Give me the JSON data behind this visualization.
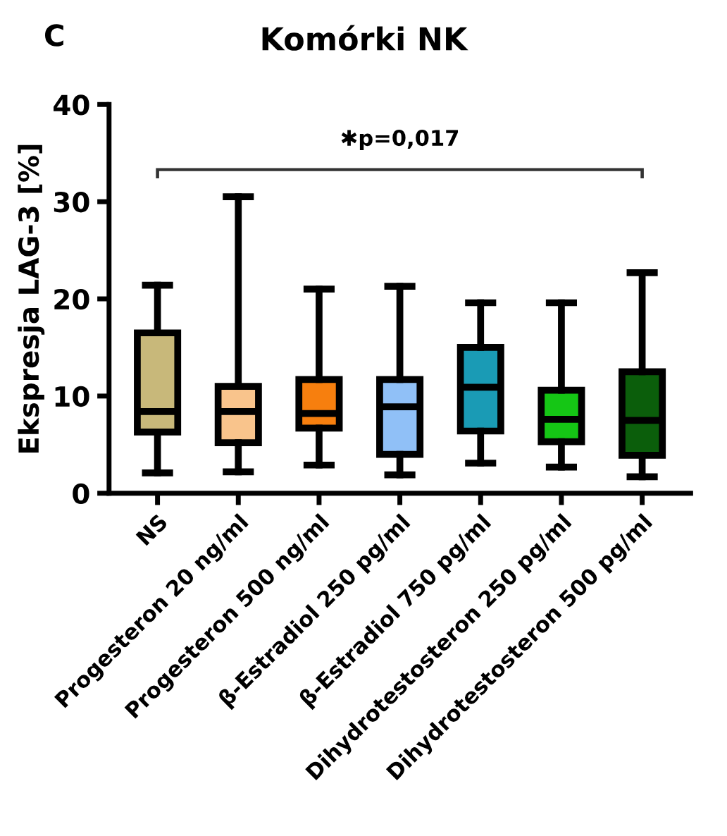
{
  "chart_data": {
    "type": "box",
    "title": "Komórki NK",
    "ylabel": "Ekspresja LAG-3 [%]",
    "categories": [
      "NS",
      "Progesteron 20 ng/ml",
      "Progesteron 500 ng/ml",
      "β-Estradiol 250 pg/ml",
      "β-Estradiol 750 pg/ml",
      "Dihydrotestosteron 250 pg/ml",
      "Dihydrotestosteron 500 pg/ml"
    ],
    "colors": [
      "#c8b87a",
      "#f9c48c",
      "#f77f0e",
      "#90c0f7",
      "#1a9bb5",
      "#15c615",
      "#0b5e0b"
    ],
    "boxes": [
      {
        "low": 2.1,
        "q1": 6.3,
        "median": 8.4,
        "q3": 16.5,
        "high": 21.4
      },
      {
        "low": 2.2,
        "q1": 5.2,
        "median": 8.4,
        "q3": 11.0,
        "high": 30.5
      },
      {
        "low": 2.9,
        "q1": 6.7,
        "median": 8.2,
        "q3": 11.7,
        "high": 21.0
      },
      {
        "low": 1.9,
        "q1": 4.0,
        "median": 8.9,
        "q3": 11.7,
        "high": 21.3
      },
      {
        "low": 3.1,
        "q1": 6.4,
        "median": 10.9,
        "q3": 15.0,
        "high": 19.6
      },
      {
        "low": 2.7,
        "q1": 5.3,
        "median": 7.6,
        "q3": 10.6,
        "high": 19.6
      },
      {
        "low": 1.7,
        "q1": 3.9,
        "median": 7.5,
        "q3": 12.5,
        "high": 22.7
      }
    ],
    "ylim": [
      0,
      40
    ],
    "yticks": [
      0,
      10,
      20,
      30,
      40
    ],
    "grid": false,
    "annotations": [
      "C",
      "✱p=0,017"
    ]
  }
}
